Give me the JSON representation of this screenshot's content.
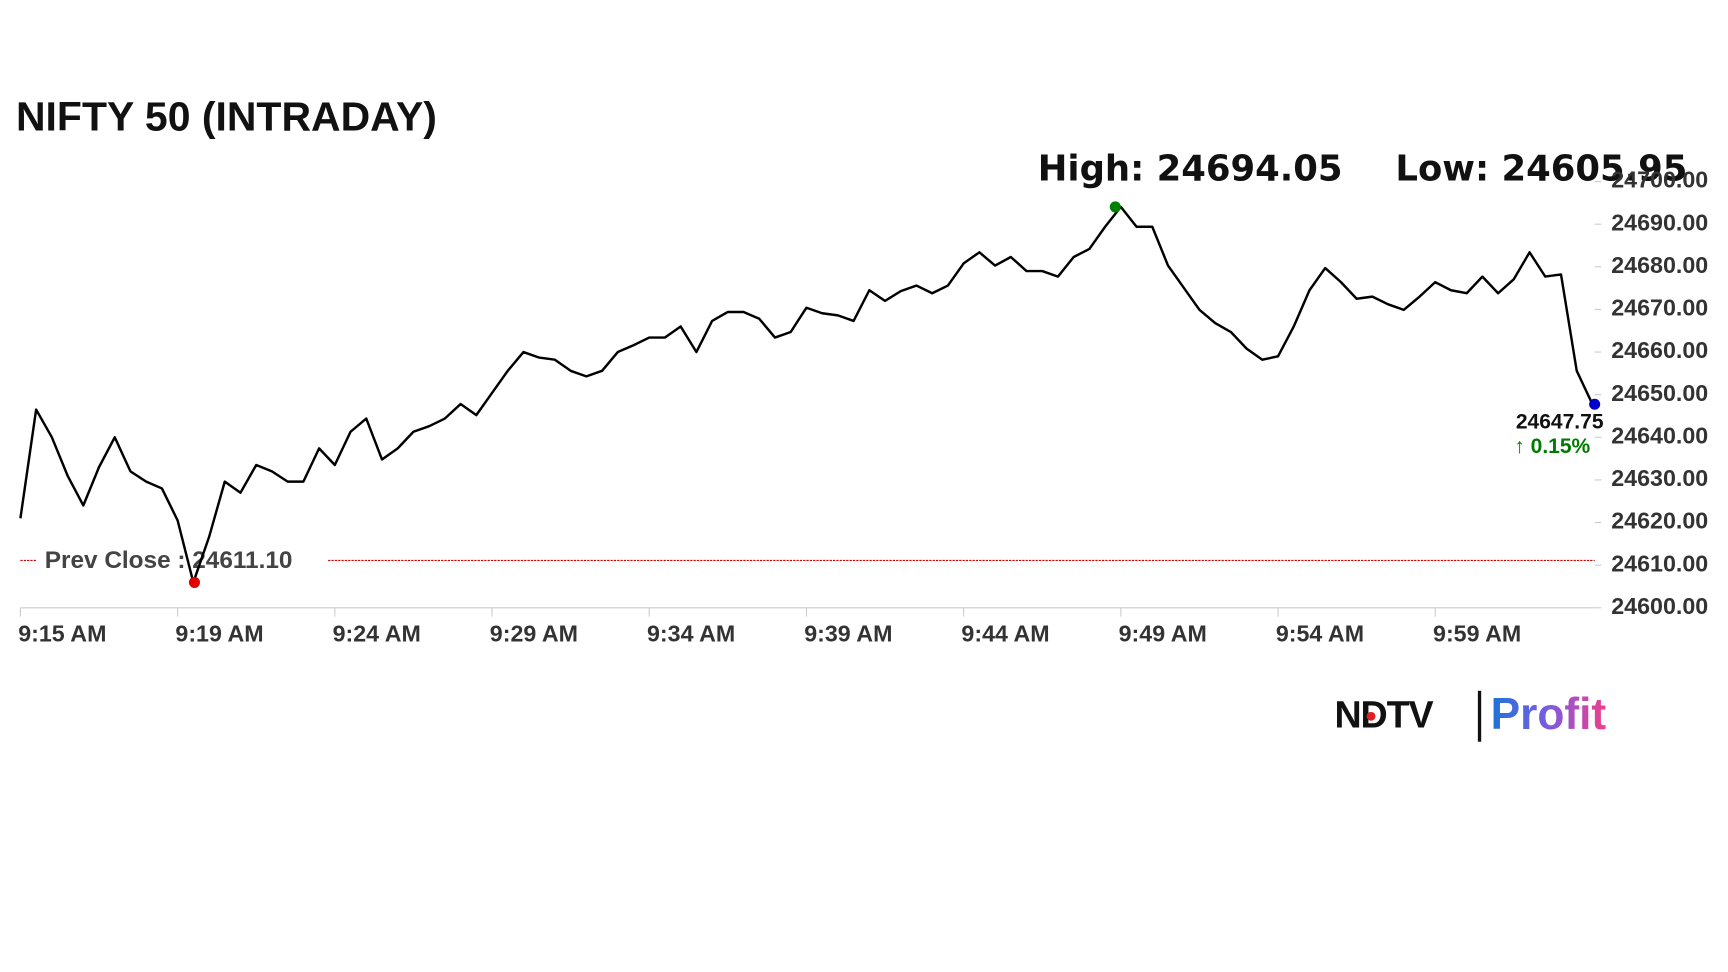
{
  "chart_data": {
    "type": "line",
    "title": "NIFTY 50 (INTRADAY)",
    "high": {
      "value": 24694.05,
      "label": "High: 24694.05"
    },
    "low": {
      "value": 24605.95,
      "label": "Low: 24605.95"
    },
    "prev_close": {
      "value": 24611.1,
      "label": "Prev Close : 24611.10"
    },
    "last": {
      "value": 24647.75,
      "label": "24647.75"
    },
    "change": "↑ 0.15%",
    "categories": [
      "9:15 AM",
      null,
      null,
      null,
      null,
      null,
      null,
      null,
      null,
      null,
      "9:19 AM",
      null,
      null,
      null,
      null,
      null,
      null,
      null,
      null,
      null,
      "9:24 AM",
      null,
      null,
      null,
      null,
      null,
      null,
      null,
      null,
      null,
      "9:29 AM",
      null,
      null,
      null,
      null,
      null,
      null,
      null,
      null,
      null,
      "9:34 AM",
      null,
      null,
      null,
      null,
      null,
      null,
      null,
      null,
      null,
      "9:39 AM",
      null,
      null,
      null,
      null,
      null,
      null,
      null,
      null,
      null,
      "9:44 AM",
      null,
      null,
      null,
      null,
      null,
      null,
      null,
      null,
      null,
      "9:49 AM",
      null,
      null,
      null,
      null,
      null,
      null,
      null,
      null,
      null,
      "9:54 AM",
      null,
      null,
      null,
      null,
      null,
      null,
      null,
      null,
      null,
      "9:59 AM",
      null,
      null,
      null,
      null,
      null,
      null,
      null,
      null,
      null,
      null
    ],
    "series": [
      {
        "color": "#000000",
        "values": [
          24621,
          24646.5,
          24640,
          24631,
          24624,
          24633,
          24640,
          24632,
          24629.6,
          24628,
          24620.5,
          24605.95,
          24616.6,
          24629.6,
          24627,
          24633.5,
          24632,
          24629.6,
          24629.6,
          24637.4,
          24633.5,
          24641.3,
          24644.4,
          24634.8,
          24637.4,
          24641.3,
          24642.6,
          24644.4,
          24647.8,
          24645.2,
          24650.4,
          24655.6,
          24660,
          24658.7,
          24658.2,
          24655.6,
          24654.3,
          24655.6,
          24660,
          24661.6,
          24663.4,
          24663.4,
          24666,
          24660,
          24667.3,
          24669.4,
          24669.4,
          24667.8,
          24663.4,
          24664.7,
          24670.4,
          24669.1,
          24668.6,
          24667.3,
          24674.5,
          24672,
          24674.3,
          24675.6,
          24673.8,
          24675.6,
          24680.8,
          24683.4,
          24680.3,
          24682.3,
          24679,
          24679,
          24677.7,
          24682.3,
          24684.2,
          24689.4,
          24694.05,
          24689.4,
          24689.4,
          24680.3,
          24675.1,
          24669.9,
          24666.8,
          24664.7,
          24660.8,
          24658.2,
          24659,
          24666,
          24674.5,
          24679.7,
          24676.4,
          24672.5,
          24673,
          24671.2,
          24669.9,
          24673,
          24676.4,
          24674.5,
          24673.8,
          24677.7,
          24673.8,
          24677.1,
          24683.4,
          24677.7,
          24678.2,
          24655.6,
          24647.75
        ]
      }
    ],
    "ylim": [
      24600,
      24700
    ],
    "yticks": [
      {
        "value": 24600,
        "label": "24600.00"
      },
      {
        "value": 24610,
        "label": "24610.00"
      },
      {
        "value": 24620,
        "label": "24620.00"
      },
      {
        "value": 24630,
        "label": "24630.00"
      },
      {
        "value": 24640,
        "label": "24640.00"
      },
      {
        "value": 24650,
        "label": "24650.00"
      },
      {
        "value": 24660,
        "label": "24660.00"
      },
      {
        "value": 24670,
        "label": "24670.00"
      },
      {
        "value": 24680,
        "label": "24680.00"
      },
      {
        "value": 24690,
        "label": "24690.00"
      },
      {
        "value": 24700,
        "label": "24700.00"
      }
    ],
    "prev_close_color": "#d00000",
    "high_color": "#008000",
    "low_color": "#e00000",
    "last_color": "#0000cc",
    "change_color": "#007a00"
  },
  "logo": {
    "brand": "NDTV",
    "product": "Profit"
  }
}
